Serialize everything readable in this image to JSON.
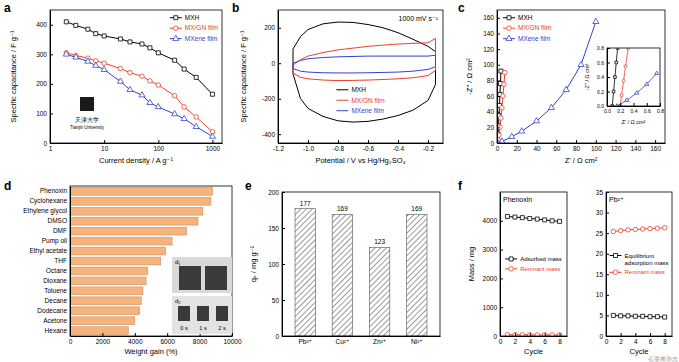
{
  "chart_data": [
    {
      "type": "line",
      "panel_label": "a",
      "xlabel": "Current density / A g⁻¹",
      "ylabel": "Specific capacitance / F g⁻¹",
      "log": "x",
      "xlim": [
        1,
        1500
      ],
      "xticks": [
        1,
        10,
        100,
        1000
      ],
      "ylim": [
        0,
        450
      ],
      "yticks": [
        0,
        100,
        200,
        300,
        400
      ],
      "legend": "upper right",
      "annotations": [
        "天津大学",
        "Tianjin University"
      ],
      "x": [
        2,
        3,
        5,
        7,
        10,
        20,
        30,
        50,
        70,
        100,
        200,
        300,
        500,
        1000
      ],
      "series": [
        {
          "name": "MXH",
          "color": "#000000",
          "marker": "square",
          "values": [
            410,
            398,
            385,
            370,
            362,
            352,
            342,
            335,
            322,
            305,
            280,
            250,
            222,
            165
          ]
        },
        {
          "name": "MX/GN film",
          "color": "#e8412c",
          "marker": "circle",
          "values": [
            305,
            296,
            287,
            278,
            270,
            252,
            238,
            226,
            210,
            196,
            160,
            122,
            88,
            38
          ]
        },
        {
          "name": "MXene film",
          "color": "#3344cc",
          "marker": "triangle",
          "values": [
            300,
            290,
            276,
            262,
            248,
            208,
            180,
            162,
            136,
            122,
            98,
            82,
            55,
            22
          ]
        }
      ]
    },
    {
      "type": "line",
      "panel_label": "b",
      "xlabel": "Potential / V vs Hg/Hg₂SO₄",
      "ylabel": "Specific capacitance / F g⁻¹",
      "xlim": [
        -1.2,
        -0.1
      ],
      "xticks": [
        -1.2,
        {
          "value": -1,
          "label": "-1.0"
        },
        -0.8,
        -0.6,
        -0.4,
        -0.2
      ],
      "ylim": [
        -450,
        300
      ],
      "yticks": [
        -400,
        -200,
        0,
        200
      ],
      "legend": "lower center",
      "annotations": [
        "1000 mV s⁻¹"
      ],
      "series": [
        {
          "name": "MXH",
          "color": "#000000",
          "x": [
            -0.15,
            -0.2,
            -0.3,
            -0.4,
            -0.5,
            -0.6,
            -0.7,
            -0.8,
            -0.9,
            -1.0,
            -1.05,
            -1.1,
            -1.1,
            -1.05,
            -1.0,
            -0.9,
            -0.8,
            -0.7,
            -0.6,
            -0.5,
            -0.4,
            -0.3,
            -0.2,
            -0.15,
            -0.15
          ],
          "values": [
            -120,
            -210,
            -265,
            -295,
            -315,
            -328,
            -332,
            -325,
            -300,
            -255,
            -200,
            -60,
            80,
            150,
            190,
            222,
            232,
            230,
            218,
            200,
            172,
            135,
            95,
            65,
            -120
          ]
        },
        {
          "name": "MX/GN film",
          "color": "#e8412c",
          "x": [
            -0.15,
            -0.2,
            -0.3,
            -0.4,
            -0.5,
            -0.6,
            -0.7,
            -0.8,
            -0.9,
            -1.0,
            -1.05,
            -1.1,
            -1.1,
            -1.05,
            -1.0,
            -0.9,
            -0.8,
            -0.7,
            -0.6,
            -0.5,
            -0.4,
            -0.3,
            -0.2,
            -0.15,
            -0.15
          ],
          "values": [
            -40,
            -70,
            -82,
            -88,
            -92,
            -95,
            -97,
            -98,
            -95,
            -88,
            -80,
            -55,
            -10,
            20,
            40,
            60,
            75,
            85,
            95,
            102,
            108,
            112,
            115,
            140,
            -40
          ]
        },
        {
          "name": "MXene film",
          "color": "#3344cc",
          "x": [
            -0.15,
            -0.2,
            -0.3,
            -0.4,
            -0.5,
            -0.6,
            -0.7,
            -0.8,
            -0.9,
            -1.0,
            -1.05,
            -1.1,
            -1.1,
            -1.05,
            -1.0,
            -0.9,
            -0.8,
            -0.7,
            -0.6,
            -0.5,
            -0.4,
            -0.3,
            -0.2,
            -0.15,
            -0.15
          ],
          "values": [
            -20,
            -35,
            -45,
            -50,
            -52,
            -54,
            -55,
            -55,
            -54,
            -50,
            -45,
            -30,
            0,
            15,
            25,
            32,
            36,
            38,
            40,
            40,
            40,
            40,
            40,
            45,
            -20
          ]
        }
      ]
    },
    {
      "type": "line",
      "panel_label": "c",
      "xlabel": "Z' / Ω cm²",
      "ylabel": "-Z'' / Ω cm²",
      "xlim": [
        0,
        170
      ],
      "xticks": [
        0,
        20,
        40,
        60,
        80,
        100,
        120,
        140,
        160
      ],
      "ylim": [
        0,
        170
      ],
      "yticks": [
        0,
        20,
        40,
        60,
        80,
        100,
        120,
        140,
        160
      ],
      "legend": "upper left",
      "series": [
        {
          "name": "MXH",
          "color": "#000000",
          "marker": "square",
          "x": [
            0.2,
            0.5,
            1,
            1.5,
            2,
            2.5,
            3,
            3.5,
            4
          ],
          "values": [
            0,
            5,
            12,
            22,
            35,
            48,
            62,
            76,
            92
          ]
        },
        {
          "name": "MX/GN film",
          "color": "#e8412c",
          "marker": "circle",
          "x": [
            0.3,
            1,
            2,
            3,
            4,
            5,
            6,
            7,
            8
          ],
          "values": [
            0,
            4,
            10,
            20,
            32,
            45,
            60,
            75,
            90
          ]
        },
        {
          "name": "MXene film",
          "color": "#3344cc",
          "marker": "triangle",
          "x": [
            0.5,
            5,
            15,
            25,
            40,
            55,
            70,
            85,
            100
          ],
          "values": [
            0,
            2,
            8,
            15,
            28,
            45,
            68,
            100,
            155
          ]
        }
      ]
    },
    {
      "type": "line",
      "xlabel": "Z' / Ω cm²",
      "ylabel": "-Z'' / Ω cm²",
      "xlim": [
        0,
        0.8
      ],
      "xticks": [
        {
          "value": 0,
          "label": "0.0"
        },
        0.2,
        0.4,
        0.6,
        0.8
      ],
      "ylim": [
        0,
        0.8
      ],
      "yticks": [
        {
          "value": 0,
          "label": "0.0"
        },
        0.2,
        0.4,
        0.6,
        0.8
      ],
      "series": [
        {
          "color": "#000000",
          "marker": "square",
          "x": [
            0.08,
            0.1,
            0.12,
            0.14,
            0.16
          ],
          "values": [
            0,
            0.2,
            0.4,
            0.6,
            0.8
          ]
        },
        {
          "color": "#e8412c",
          "marker": "circle",
          "x": [
            0.2,
            0.22,
            0.25,
            0.28,
            0.32
          ],
          "values": [
            0,
            0.15,
            0.35,
            0.55,
            0.8
          ]
        },
        {
          "color": "#3344cc",
          "marker": "triangle",
          "x": [
            0.15,
            0.3,
            0.45,
            0.6,
            0.75
          ],
          "values": [
            0,
            0.08,
            0.18,
            0.3,
            0.45
          ]
        }
      ]
    },
    {
      "type": "bar",
      "orientation": "horizontal",
      "panel_label": "d",
      "xlabel": "Weight gain (%)",
      "categories": [
        "Phenoxin",
        "Cyclohexane",
        "Ethylene glycol",
        "DMSO",
        "DMF",
        "Pump oil",
        "Ethyl acetate",
        "THF",
        "Octane",
        "Dioxane",
        "Toluene",
        "Decane",
        "Dodecane",
        "Acetone",
        "Hexane"
      ],
      "values": [
        8800,
        8700,
        8200,
        7900,
        7200,
        6300,
        5900,
        5600,
        4800,
        4700,
        4500,
        4400,
        4300,
        4000,
        3600
      ],
      "color": "#f6b47c",
      "xlim": [
        0,
        10000
      ],
      "xticks": [
        0,
        2000,
        4000,
        6000,
        8000,
        10000
      ],
      "annotations": [
        "d₁",
        "d₂",
        "0 s",
        "1 s",
        "2 s"
      ]
    },
    {
      "type": "bar",
      "panel_label": "e",
      "ylabel": "qₑ / mg g⁻¹",
      "categories": [
        "Pb²⁺",
        "Cu²⁺",
        "Zn²⁺",
        "Ni²⁺"
      ],
      "values": [
        177,
        169,
        123,
        169
      ],
      "color": "#555555",
      "data_labels": true,
      "ylim": [
        0,
        200
      ],
      "yticks": [
        0,
        50,
        100,
        150,
        200
      ]
    },
    {
      "type": "line",
      "panel_label": "f",
      "title": "Phenoxin",
      "xlabel": "Cycle",
      "ylabel": "Mass / mg",
      "xlim": [
        0,
        9
      ],
      "xticks": [
        0,
        2,
        4,
        6,
        8
      ],
      "ylim": [
        0,
        5000
      ],
      "yticks": [
        0,
        1000,
        2000,
        3000,
        4000
      ],
      "legend": "center",
      "x": [
        1,
        2,
        3,
        4,
        5,
        6,
        7,
        8
      ],
      "series": [
        {
          "name": "Adsorbed mass",
          "color": "#000000",
          "marker": "square",
          "values": [
            4150,
            4130,
            4110,
            4080,
            4060,
            4030,
            4000,
            3980
          ]
        },
        {
          "name": "Remnant mass",
          "color": "#e8412c",
          "marker": "circle",
          "values": [
            45,
            42,
            40,
            40,
            38,
            38,
            36,
            35
          ]
        }
      ]
    },
    {
      "type": "line",
      "title": "Pb²⁺",
      "xlabel": "Cycle",
      "xlim": [
        0,
        9
      ],
      "xticks": [
        0,
        2,
        4,
        6,
        8
      ],
      "ylim": [
        0,
        35
      ],
      "yticks": [
        0,
        5,
        10,
        15,
        20,
        25,
        30,
        35
      ],
      "legend": "center",
      "annotations": [
        "石墨烯杂志"
      ],
      "x": [
        1,
        2,
        3,
        4,
        5,
        6,
        7,
        8
      ],
      "series": [
        {
          "name": "Equilibrium adsorption mass",
          "color": "#000000",
          "marker": "square",
          "values": [
            5.0,
            4.9,
            4.9,
            4.8,
            4.8,
            4.7,
            4.7,
            4.6
          ]
        },
        {
          "name": "Remnant mass",
          "color": "#e8412c",
          "marker": "circle",
          "values": [
            25.4,
            25.6,
            25.8,
            25.9,
            26.0,
            26.1,
            26.2,
            26.3
          ]
        }
      ]
    }
  ]
}
